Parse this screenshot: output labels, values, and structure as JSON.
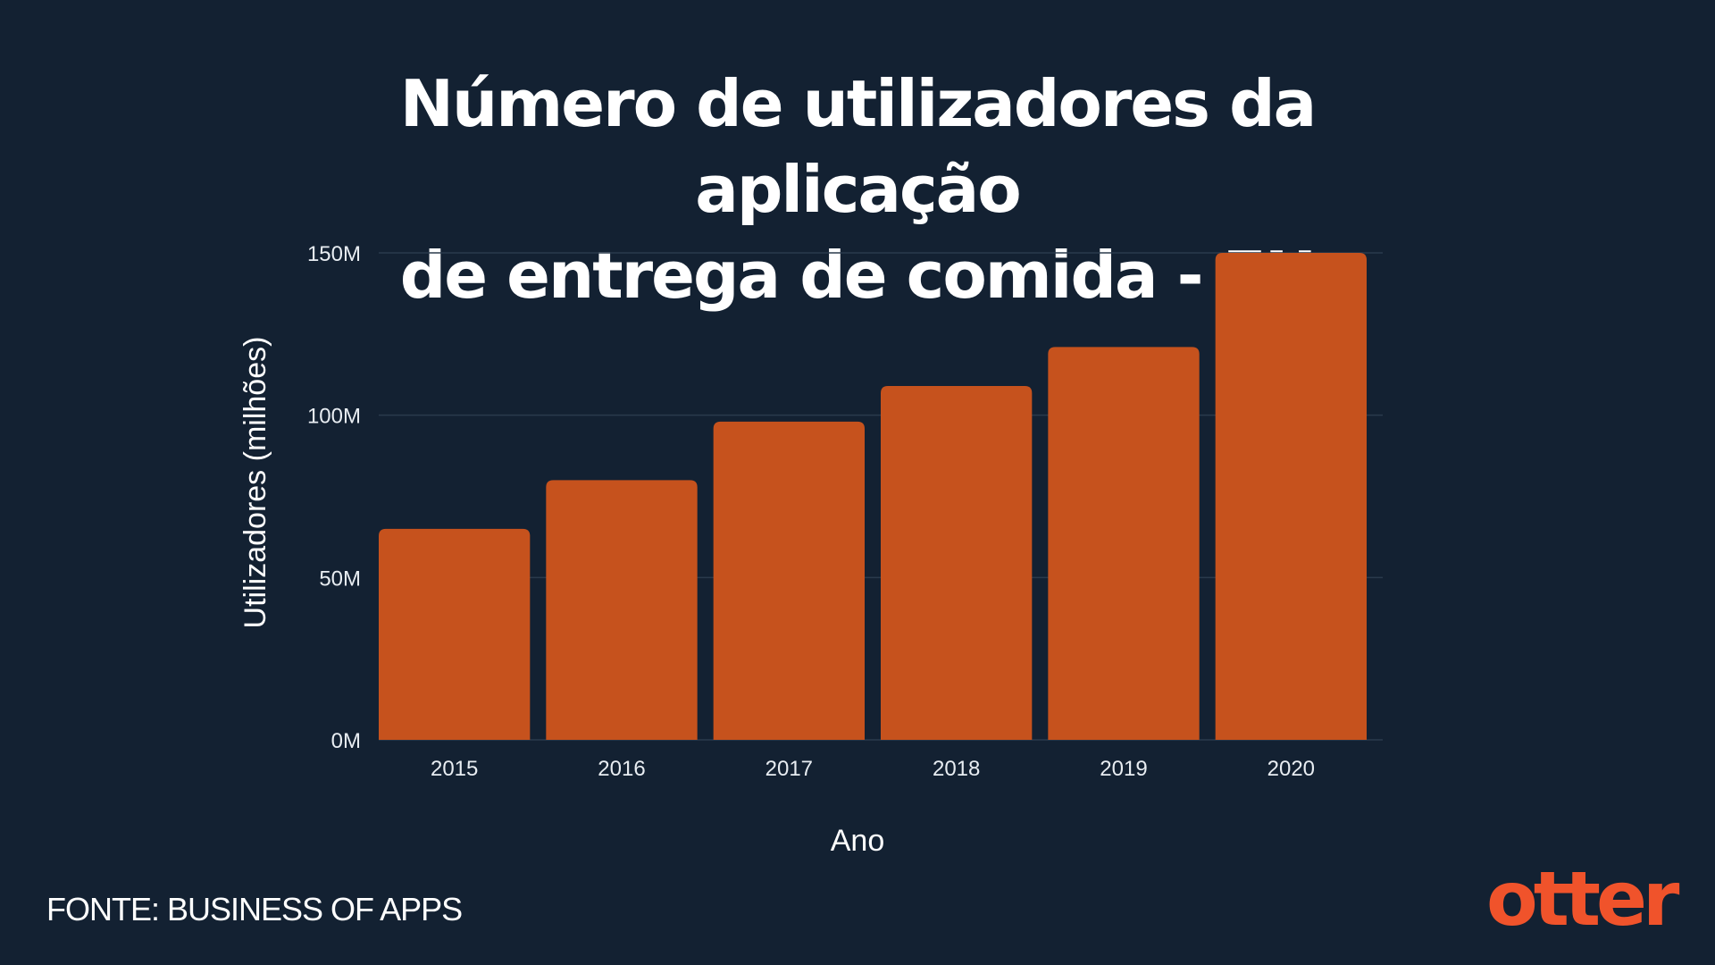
{
  "colors": {
    "background": "#132132",
    "bar": "#c6521d",
    "grid": "#2a3a4c",
    "text": "#ffffff",
    "logo": "#f0532b"
  },
  "chart_data": {
    "type": "bar",
    "title_lines": [
      "Número de utilizadores da aplicação",
      "de entrega de comida - EU"
    ],
    "xlabel": "Ano",
    "ylabel": "Utilizadores (milhões)",
    "categories": [
      "2015",
      "2016",
      "2017",
      "2018",
      "2019",
      "2020"
    ],
    "values": [
      65,
      80,
      98,
      109,
      121,
      150
    ],
    "ylim": [
      0,
      150
    ],
    "yticks": [
      0,
      50,
      100,
      150
    ],
    "ytick_labels": [
      "0M",
      "50M",
      "100M",
      "150M"
    ],
    "grid": true,
    "legend": "none"
  },
  "footer": {
    "source": "FONTE: BUSINESS OF APPS",
    "logo": "otter"
  }
}
